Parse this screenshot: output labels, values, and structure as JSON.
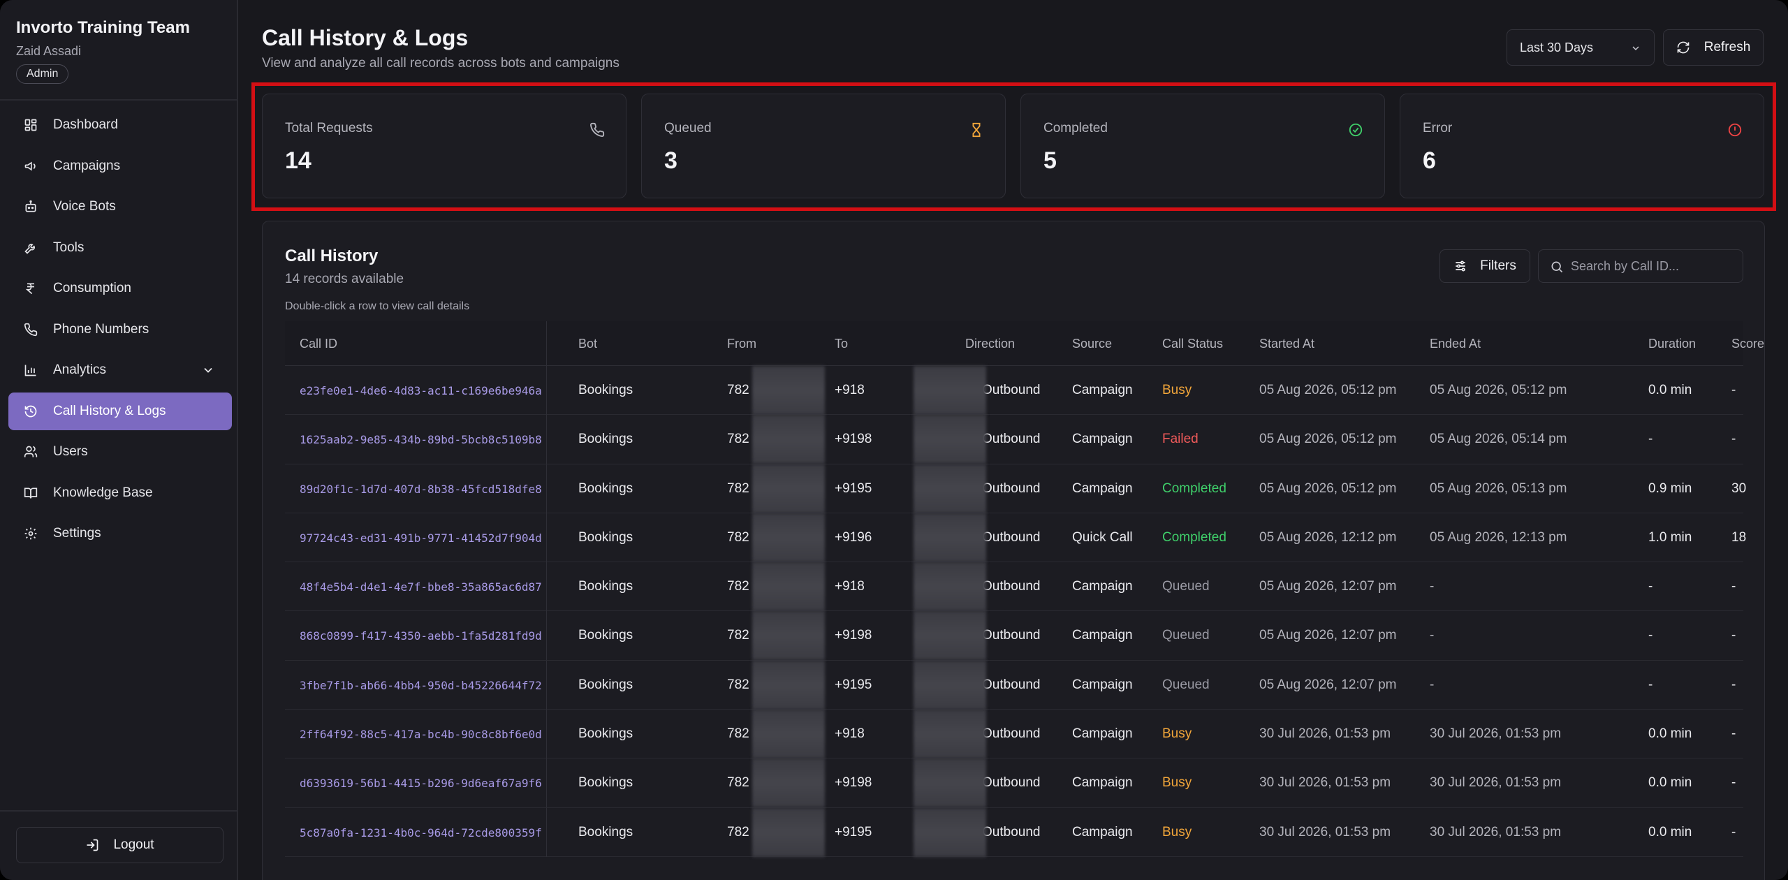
{
  "sidebar": {
    "org_name": "Invorto Training Team",
    "user_name": "Zaid Assadi",
    "role": "Admin",
    "items": [
      {
        "label": "Dashboard",
        "icon": "dashboard-icon"
      },
      {
        "label": "Campaigns",
        "icon": "megaphone-icon"
      },
      {
        "label": "Voice Bots",
        "icon": "bot-icon"
      },
      {
        "label": "Tools",
        "icon": "wrench-icon"
      },
      {
        "label": "Consumption",
        "icon": "rupee-icon"
      },
      {
        "label": "Phone Numbers",
        "icon": "phone-icon"
      },
      {
        "label": "Analytics",
        "icon": "bar-chart-icon"
      },
      {
        "label": "Call History & Logs",
        "icon": "history-icon",
        "active": true
      },
      {
        "label": "Users",
        "icon": "users-icon"
      },
      {
        "label": "Knowledge Base",
        "icon": "book-icon"
      },
      {
        "label": "Settings",
        "icon": "gear-icon"
      }
    ],
    "logout_label": "Logout"
  },
  "header": {
    "title": "Call History & Logs",
    "subtitle": "View and analyze all call records across bots and campaigns",
    "range_value": "Last 30 Days",
    "refresh_label": "Refresh"
  },
  "stats": [
    {
      "label": "Total Requests",
      "value": "14",
      "icon": "phone-icon",
      "color": "#b4b4bc"
    },
    {
      "label": "Queued",
      "value": "3",
      "icon": "hourglass-icon",
      "color": "#f2a63a"
    },
    {
      "label": "Completed",
      "value": "5",
      "icon": "check-circle-icon",
      "color": "#3fcf6a"
    },
    {
      "label": "Error",
      "value": "6",
      "icon": "alert-circle-icon",
      "color": "#ef4444"
    }
  ],
  "table": {
    "title": "Call History",
    "subtitle": "14 records available",
    "hint": "Double-click a row to view call details",
    "filters_label": "Filters",
    "search_placeholder": "Search by Call ID...",
    "columns": [
      "Call ID",
      "Bot",
      "From",
      "To",
      "Direction",
      "Source",
      "Call Status",
      "Started At",
      "Ended At",
      "Duration",
      "Score"
    ],
    "rows": [
      {
        "id": "e23fe0e1-4de6-4d83-ac11-c169e6be946a",
        "bot": "Bookings",
        "from": "782",
        "to": "+918",
        "direction": "Outbound",
        "source": "Campaign",
        "status": "Busy",
        "started": "05 Aug 2026, 05:12 pm",
        "ended": "05 Aug 2026, 05:12 pm",
        "duration": "0.0 min",
        "score": "-"
      },
      {
        "id": "1625aab2-9e85-434b-89bd-5bcb8c5109b8",
        "bot": "Bookings",
        "from": "782",
        "to": "+9198",
        "direction": "Outbound",
        "source": "Campaign",
        "status": "Failed",
        "started": "05 Aug 2026, 05:12 pm",
        "ended": "05 Aug 2026, 05:14 pm",
        "duration": "-",
        "score": "-"
      },
      {
        "id": "89d20f1c-1d7d-407d-8b38-45fcd518dfe8",
        "bot": "Bookings",
        "from": "782",
        "to": "+9195",
        "direction": "Outbound",
        "source": "Campaign",
        "status": "Completed",
        "started": "05 Aug 2026, 05:12 pm",
        "ended": "05 Aug 2026, 05:13 pm",
        "duration": "0.9 min",
        "score": "30"
      },
      {
        "id": "97724c43-ed31-491b-9771-41452d7f904d",
        "bot": "Bookings",
        "from": "782",
        "to": "+9196",
        "direction": "Outbound",
        "source": "Quick Call",
        "status": "Completed",
        "started": "05 Aug 2026, 12:12 pm",
        "ended": "05 Aug 2026, 12:13 pm",
        "duration": "1.0 min",
        "score": "18"
      },
      {
        "id": "48f4e5b4-d4e1-4e7f-bbe8-35a865ac6d87",
        "bot": "Bookings",
        "from": "782",
        "to": "+918",
        "direction": "Outbound",
        "source": "Campaign",
        "status": "Queued",
        "started": "05 Aug 2026, 12:07 pm",
        "ended": "-",
        "duration": "-",
        "score": "-"
      },
      {
        "id": "868c0899-f417-4350-aebb-1fa5d281fd9d",
        "bot": "Bookings",
        "from": "782",
        "to": "+9198",
        "direction": "Outbound",
        "source": "Campaign",
        "status": "Queued",
        "started": "05 Aug 2026, 12:07 pm",
        "ended": "-",
        "duration": "-",
        "score": "-"
      },
      {
        "id": "3fbe7f1b-ab66-4bb4-950d-b45226644f72",
        "bot": "Bookings",
        "from": "782",
        "to": "+9195",
        "direction": "Outbound",
        "source": "Campaign",
        "status": "Queued",
        "started": "05 Aug 2026, 12:07 pm",
        "ended": "-",
        "duration": "-",
        "score": "-"
      },
      {
        "id": "2ff64f92-88c5-417a-bc4b-90c8c8bf6e0d",
        "bot": "Bookings",
        "from": "782",
        "to": "+918",
        "direction": "Outbound",
        "source": "Campaign",
        "status": "Busy",
        "started": "30 Jul 2026, 01:53 pm",
        "ended": "30 Jul 2026, 01:53 pm",
        "duration": "0.0 min",
        "score": "-"
      },
      {
        "id": "d6393619-56b1-4415-b296-9d6eaf67a9f6",
        "bot": "Bookings",
        "from": "782",
        "to": "+9198",
        "direction": "Outbound",
        "source": "Campaign",
        "status": "Busy",
        "started": "30 Jul 2026, 01:53 pm",
        "ended": "30 Jul 2026, 01:53 pm",
        "duration": "0.0 min",
        "score": "-"
      },
      {
        "id": "5c87a0fa-1231-4b0c-964d-72cde800359f",
        "bot": "Bookings",
        "from": "782",
        "to": "+9195",
        "direction": "Outbound",
        "source": "Campaign",
        "status": "Busy",
        "started": "30 Jul 2026, 01:53 pm",
        "ended": "30 Jul 2026, 01:53 pm",
        "duration": "0.0 min",
        "score": "-"
      }
    ]
  }
}
